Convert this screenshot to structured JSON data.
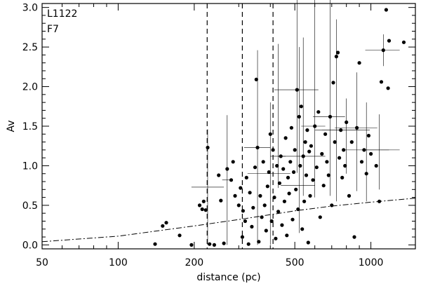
{
  "chart_data": {
    "type": "scatter",
    "title": "",
    "xlabel": "distance (pc)",
    "ylabel": "Av",
    "x_scale": "log",
    "xlim": [
      50,
      1500
    ],
    "ylim": [
      -0.05,
      3.05
    ],
    "x_ticks": [
      50,
      100,
      200,
      500,
      1000
    ],
    "x_tick_labels": [
      "50",
      "100",
      "200",
      "500",
      "1000"
    ],
    "y_ticks": [
      0.0,
      0.5,
      1.0,
      1.5,
      2.0,
      2.5,
      3.0
    ],
    "y_tick_labels": [
      "0.0",
      "0.5",
      "1.0",
      "1.5",
      "2.0",
      "2.5",
      "3.0"
    ],
    "grid": false,
    "annotations": [
      "L1122",
      "F7"
    ],
    "vertical_dashed_lines_x": [
      225,
      310,
      410
    ],
    "model_curve": {
      "style": "dash-dot",
      "x": [
        50,
        100,
        200,
        300,
        500,
        700,
        1000,
        1500
      ],
      "y": [
        0.04,
        0.11,
        0.24,
        0.32,
        0.43,
        0.49,
        0.54,
        0.59
      ]
    },
    "points": [
      {
        "x": 140,
        "y": 0.01
      },
      {
        "x": 150,
        "y": 0.24
      },
      {
        "x": 155,
        "y": 0.28
      },
      {
        "x": 175,
        "y": 0.12
      },
      {
        "x": 195,
        "y": 0.0
      },
      {
        "x": 210,
        "y": 0.5
      },
      {
        "x": 215,
        "y": 0.45
      },
      {
        "x": 218,
        "y": 0.55
      },
      {
        "x": 222,
        "y": 0.44
      },
      {
        "x": 226,
        "y": 1.23
      },
      {
        "x": 230,
        "y": 0.01
      },
      {
        "x": 240,
        "y": 0.0
      },
      {
        "x": 250,
        "y": 0.88
      },
      {
        "x": 255,
        "y": 0.56
      },
      {
        "x": 262,
        "y": 0.02
      },
      {
        "x": 270,
        "y": 0.96
      },
      {
        "x": 280,
        "y": 0.82
      },
      {
        "x": 285,
        "y": 1.05
      },
      {
        "x": 290,
        "y": 0.62
      },
      {
        "x": 300,
        "y": 0.5
      },
      {
        "x": 305,
        "y": 0.72
      },
      {
        "x": 310,
        "y": 0.1
      },
      {
        "x": 312,
        "y": 0.43
      },
      {
        "x": 318,
        "y": 0.3
      },
      {
        "x": 322,
        "y": 0.85
      },
      {
        "x": 328,
        "y": 0.01
      },
      {
        "x": 332,
        "y": 0.66
      },
      {
        "x": 338,
        "y": 0.23
      },
      {
        "x": 342,
        "y": 0.47
      },
      {
        "x": 348,
        "y": 0.98
      },
      {
        "x": 352,
        "y": 2.09
      },
      {
        "x": 356,
        "y": 1.23
      },
      {
        "x": 360,
        "y": 0.04
      },
      {
        "x": 365,
        "y": 0.62
      },
      {
        "x": 370,
        "y": 0.35
      },
      {
        "x": 375,
        "y": 1.05
      },
      {
        "x": 380,
        "y": 0.5
      },
      {
        "x": 385,
        "y": 0.18
      },
      {
        "x": 390,
        "y": 0.74
      },
      {
        "x": 395,
        "y": 0.92
      },
      {
        "x": 400,
        "y": 1.4
      },
      {
        "x": 405,
        "y": 0.3
      },
      {
        "x": 410,
        "y": 1.2
      },
      {
        "x": 415,
        "y": 0.6
      },
      {
        "x": 420,
        "y": 0.08
      },
      {
        "x": 425,
        "y": 1.0
      },
      {
        "x": 430,
        "y": 0.42
      },
      {
        "x": 435,
        "y": 0.78
      },
      {
        "x": 440,
        "y": 1.12
      },
      {
        "x": 445,
        "y": 0.25
      },
      {
        "x": 450,
        "y": 0.96
      },
      {
        "x": 455,
        "y": 0.55
      },
      {
        "x": 460,
        "y": 1.35
      },
      {
        "x": 465,
        "y": 0.12
      },
      {
        "x": 470,
        "y": 0.85
      },
      {
        "x": 475,
        "y": 0.65
      },
      {
        "x": 480,
        "y": 1.05
      },
      {
        "x": 485,
        "y": 1.48
      },
      {
        "x": 490,
        "y": 0.32
      },
      {
        "x": 495,
        "y": 0.92
      },
      {
        "x": 500,
        "y": 1.2
      },
      {
        "x": 505,
        "y": 0.7
      },
      {
        "x": 510,
        "y": 1.96
      },
      {
        "x": 515,
        "y": 0.45
      },
      {
        "x": 520,
        "y": 1.62
      },
      {
        "x": 525,
        "y": 1.0
      },
      {
        "x": 530,
        "y": 1.75
      },
      {
        "x": 535,
        "y": 0.2
      },
      {
        "x": 540,
        "y": 1.12
      },
      {
        "x": 545,
        "y": 0.55
      },
      {
        "x": 550,
        "y": 1.3
      },
      {
        "x": 555,
        "y": 0.88
      },
      {
        "x": 560,
        "y": 1.45
      },
      {
        "x": 565,
        "y": 0.03
      },
      {
        "x": 570,
        "y": 1.18
      },
      {
        "x": 575,
        "y": 0.62
      },
      {
        "x": 580,
        "y": 1.25
      },
      {
        "x": 590,
        "y": 0.82
      },
      {
        "x": 600,
        "y": 1.5
      },
      {
        "x": 610,
        "y": 0.98
      },
      {
        "x": 620,
        "y": 1.68
      },
      {
        "x": 630,
        "y": 0.35
      },
      {
        "x": 640,
        "y": 1.15
      },
      {
        "x": 650,
        "y": 0.75
      },
      {
        "x": 660,
        "y": 1.4
      },
      {
        "x": 670,
        "y": 1.05
      },
      {
        "x": 680,
        "y": 0.88
      },
      {
        "x": 690,
        "y": 1.62
      },
      {
        "x": 700,
        "y": 0.5
      },
      {
        "x": 710,
        "y": 2.05
      },
      {
        "x": 720,
        "y": 1.3
      },
      {
        "x": 730,
        "y": 2.38
      },
      {
        "x": 740,
        "y": 2.43
      },
      {
        "x": 750,
        "y": 1.1
      },
      {
        "x": 760,
        "y": 1.45
      },
      {
        "x": 770,
        "y": 0.85
      },
      {
        "x": 780,
        "y": 1.2
      },
      {
        "x": 790,
        "y": 1.0
      },
      {
        "x": 800,
        "y": 1.55
      },
      {
        "x": 820,
        "y": 0.62
      },
      {
        "x": 840,
        "y": 1.3
      },
      {
        "x": 860,
        "y": 0.1
      },
      {
        "x": 880,
        "y": 1.48
      },
      {
        "x": 900,
        "y": 2.3
      },
      {
        "x": 920,
        "y": 1.05
      },
      {
        "x": 940,
        "y": 1.2
      },
      {
        "x": 960,
        "y": 0.9
      },
      {
        "x": 980,
        "y": 1.38
      },
      {
        "x": 1000,
        "y": 1.15
      },
      {
        "x": 1050,
        "y": 1.0
      },
      {
        "x": 1080,
        "y": 0.55
      },
      {
        "x": 1100,
        "y": 2.06
      },
      {
        "x": 1120,
        "y": 2.46
      },
      {
        "x": 1150,
        "y": 2.97
      },
      {
        "x": 1170,
        "y": 1.98
      },
      {
        "x": 1180,
        "y": 2.58
      },
      {
        "x": 1350,
        "y": 2.56
      }
    ],
    "error_bars": [
      {
        "x": 226,
        "y": 0.73,
        "xerr": [
          195,
          262
        ],
        "yerr": [
          0.73,
          0.73
        ]
      },
      {
        "x": 270,
        "y": 0.82,
        "xerr": [
          258,
          282
        ],
        "yerr": [
          0.82,
          0.82
        ]
      },
      {
        "x": 356,
        "y": 1.23,
        "xerr": [
          315,
          400
        ],
        "yerr": [
          1.23,
          1.23
        ]
      },
      {
        "x": 400,
        "y": 0.9,
        "xerr": [
          325,
          480
        ],
        "yerr": [
          0.9,
          0.9
        ]
      },
      {
        "x": 430,
        "y": 1.12,
        "xerr": [
          400,
          460
        ],
        "yerr": [
          0.4,
          1.42
        ]
      },
      {
        "x": 510,
        "y": 1.96,
        "xerr": [
          415,
          620
        ],
        "yerr": [
          1.05,
          2.15
        ]
      },
      {
        "x": 520,
        "y": 0.75,
        "xerr": [
          440,
          600
        ],
        "yerr": [
          0.6,
          1.75
        ]
      },
      {
        "x": 540,
        "y": 1.12,
        "xerr": [
          430,
          660
        ],
        "yerr": [
          0.5,
          1.5
        ]
      },
      {
        "x": 600,
        "y": 1.5,
        "xerr": [
          530,
          660
        ],
        "yerr": [
          0.9,
          1.9
        ]
      },
      {
        "x": 690,
        "y": 1.62,
        "xerr": [
          590,
          790
        ],
        "yerr": [
          1.0,
          2.3
        ]
      },
      {
        "x": 730,
        "y": 1.45,
        "xerr": [
          600,
          900
        ],
        "yerr": [
          0.9,
          1.4
        ]
      },
      {
        "x": 800,
        "y": 1.45,
        "xerr": [
          640,
          990
        ],
        "yerr": [
          0.55,
          0.4
        ]
      },
      {
        "x": 880,
        "y": 1.48,
        "xerr": [
          720,
          1060
        ],
        "yerr": [
          0.8,
          0.7
        ]
      },
      {
        "x": 960,
        "y": 1.2,
        "xerr": [
          780,
          1180
        ],
        "yerr": [
          0.65,
          0.6
        ]
      },
      {
        "x": 1080,
        "y": 1.2,
        "xerr": [
          920,
          1300
        ],
        "yerr": [
          0.5,
          0.45
        ]
      },
      {
        "x": 1120,
        "y": 2.46,
        "xerr": [
          950,
          1300
        ],
        "yerr": [
          0.2,
          0.2
        ]
      }
    ]
  }
}
